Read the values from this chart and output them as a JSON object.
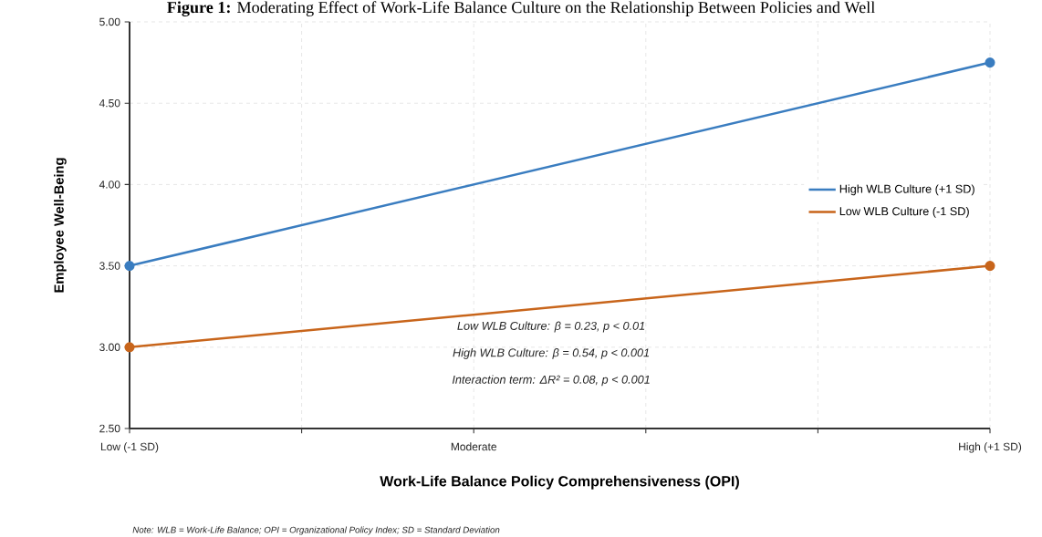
{
  "chart_data": {
    "type": "line",
    "title": "**Figure 1:** Moderating Effect of Work-Life Balance Culture on the Relationship Between Policies and Well",
    "xlabel": "Work-Life Balance Policy Comprehensiveness (OPI)",
    "ylabel": "Employee Well-Being",
    "categories": [
      "Low (-1 SD)",
      null,
      "Moderate",
      null,
      null,
      "High (+1 SD)"
    ],
    "series": [
      {
        "name": "High WLB Culture (+1 SD)",
        "color": "#3a7dc0",
        "values": [
          3.5,
          null,
          null,
          null,
          null,
          4.75
        ]
      },
      {
        "name": "Low WLB Culture (-1 SD)",
        "color": "#c8651b",
        "values": [
          3.0,
          null,
          null,
          null,
          null,
          3.5
        ]
      }
    ],
    "ylim": [
      2.5,
      5.0
    ],
    "yticks": [
      {
        "value": 2.5,
        "label": "2.50"
      },
      {
        "value": 3.0,
        "label": "3.00"
      },
      {
        "value": 3.5,
        "label": "3.50"
      },
      {
        "value": 4.0,
        "label": "4.00"
      },
      {
        "value": 4.5,
        "label": "4.50"
      },
      {
        "value": 5.0,
        "label": "5.00"
      }
    ],
    "grid": true,
    "legend": "right",
    "marker": "circle",
    "line_style": "solid",
    "annotations": [
      "*Low WLB Culture: β = 0.23, p < 0.01*",
      "*High WLB Culture: β = 0.54, p < 0.001*",
      "*Interaction term: ΔR² = 0.08, p < 0.001*",
      "*Note: WLB = Work-Life Balance; OPI = Organizational Policy Index; SD = Standard Deviation*"
    ]
  }
}
